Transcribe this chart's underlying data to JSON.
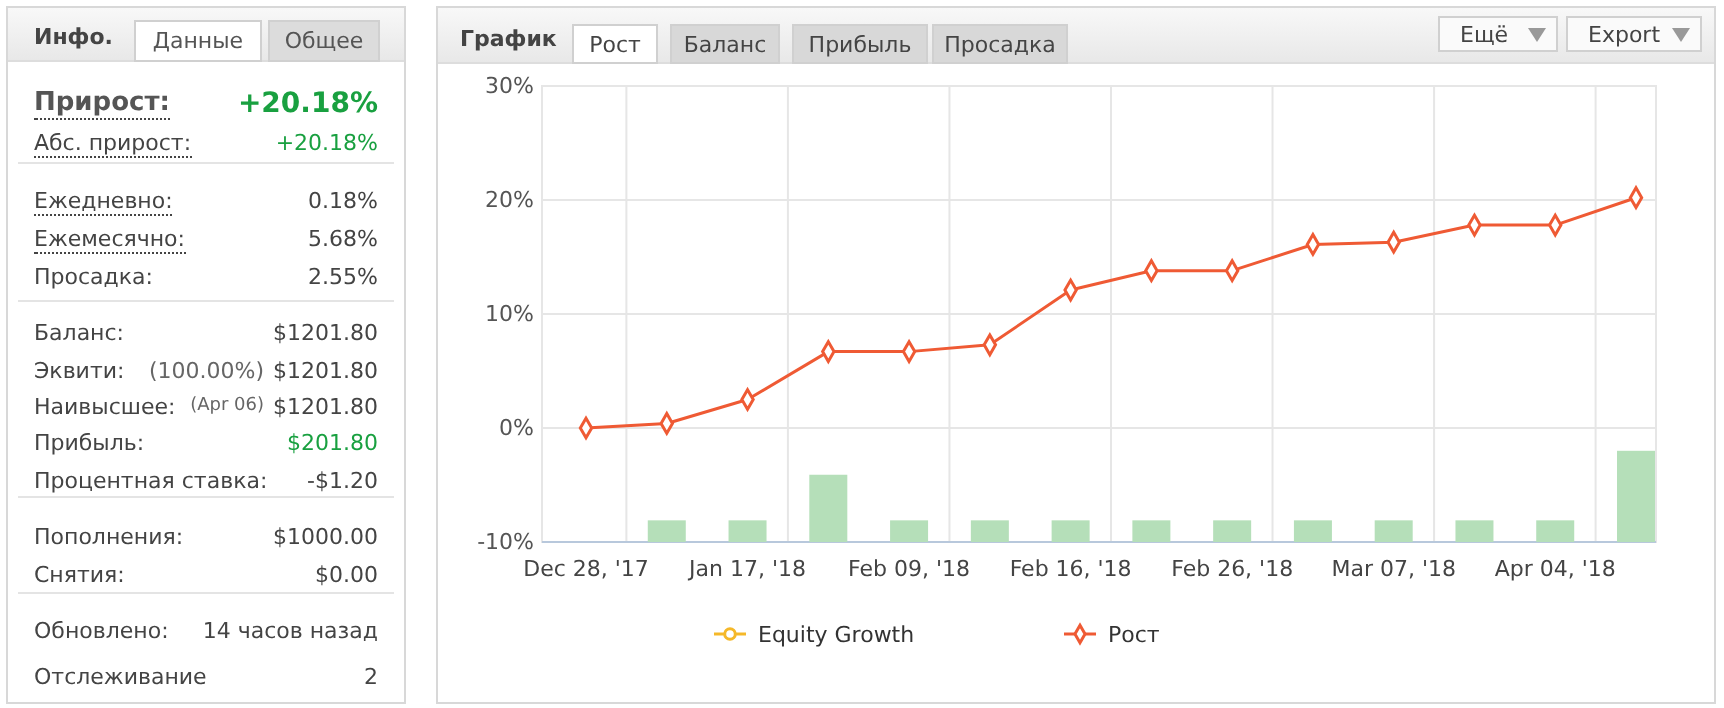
{
  "chart_data": [
    {
      "type": "other",
      "title": "Инфо.",
      "annotations": [
        "Данные",
        "Общее",
        "Прирост:",
        "+20.18%",
        "Абс. прирост:",
        "+20.18%",
        "Ежедневно:",
        "0.18%",
        "Ежемесячно:",
        "5.68%",
        "Просадка:",
        "2.55%",
        "Баланс:",
        "$1201.80",
        "Эквити:",
        "(100.00%)",
        "$1201.80",
        "Наивысшее:",
        "(Apr 06)",
        "$1201.80",
        "Прибыль:",
        "$201.80",
        "Процентная ставка:",
        "-$1.20",
        "Пополнения:",
        "$1000.00",
        "Снятия:",
        "$0.00",
        "Обновлено:",
        "14 часов назад",
        "Отслеживание",
        "2"
      ]
    },
    {
      "type": "line",
      "title": "График",
      "annotations": [
        "Рост",
        "Баланс",
        "Прибыль",
        "Просадка",
        "Ещё",
        "Export"
      ],
      "categories": [
        "Dec 28, '17",
        null,
        "Jan 17, '18",
        null,
        "Feb 09, '18",
        null,
        "Feb 16, '18",
        null,
        "Feb 26, '18",
        null,
        "Mar 07, '18",
        null,
        "Apr 04, '18",
        null
      ],
      "series": [
        {
          "type": "bar",
          "color": "#b5dfb9",
          "base": [
            null,
            -10,
            -10,
            -10,
            -10,
            -10,
            -10,
            -10,
            -10,
            -10,
            -10,
            -10,
            -10,
            -10
          ],
          "values": [
            null,
            1.9,
            1.9,
            5.9,
            1.9,
            1.9,
            1.9,
            1.9,
            1.9,
            1.9,
            1.9,
            1.9,
            1.9,
            8.0
          ]
        },
        {
          "type": "line",
          "name": "Equity Growth",
          "color": "#f5b829",
          "marker": "circle",
          "values": [
            null,
            null,
            null,
            null,
            null,
            null,
            null,
            null,
            null,
            null,
            null,
            null,
            null,
            null
          ]
        },
        {
          "type": "line",
          "name": "Рост",
          "color": "#ef5a34",
          "marker": "diamond",
          "values": [
            0,
            0.4,
            2.5,
            6.7,
            6.7,
            7.3,
            12.1,
            13.8,
            13.8,
            16.1,
            16.3,
            17.8,
            17.8,
            20.2
          ]
        }
      ],
      "ylim": [
        -10,
        30
      ],
      "yticks": [
        {
          "value": -10,
          "label": "-10%"
        },
        {
          "value": 0,
          "label": "0%"
        },
        {
          "value": 10,
          "label": "10%"
        },
        {
          "value": 20,
          "label": "20%"
        },
        {
          "value": 30,
          "label": "30%"
        }
      ],
      "grid": true,
      "legend": "bottom",
      "line_style": "solid"
    }
  ]
}
